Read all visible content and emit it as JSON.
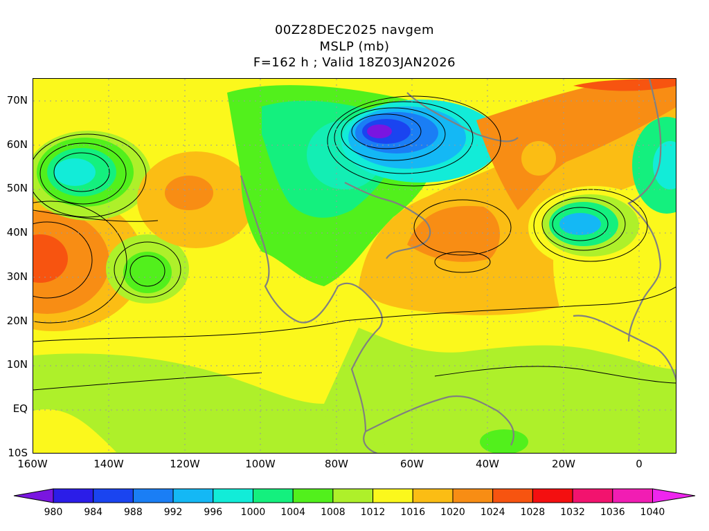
{
  "title": {
    "line1": "00Z28DEC2025 navgem",
    "line2": "MSLP (mb)",
    "line3": "F=162 h ; Valid 18Z03JAN2026"
  },
  "map": {
    "lat_labels": [
      "70N",
      "60N",
      "50N",
      "40N",
      "30N",
      "20N",
      "10N",
      "EQ",
      "10S"
    ],
    "lon_labels": [
      "160W",
      "140W",
      "120W",
      "100W",
      "80W",
      "60W",
      "40W",
      "20W",
      "0"
    ]
  },
  "colorbar": {
    "labels": [
      "980",
      "984",
      "988",
      "992",
      "996",
      "1000",
      "1004",
      "1008",
      "1012",
      "1016",
      "1020",
      "1024",
      "1028",
      "1032",
      "1036",
      "1040"
    ],
    "colors": [
      "#7a16e0",
      "#2b1de8",
      "#1a44f0",
      "#1a7ef5",
      "#14b8f5",
      "#12ecd8",
      "#14f07e",
      "#52f01c",
      "#aef02a",
      "#fbf81c",
      "#fbbd14",
      "#f88d14",
      "#f75410",
      "#f40f10",
      "#f2136e",
      "#f11db3",
      "#ee26ee"
    ]
  },
  "chart_data": {
    "type": "heatmap",
    "title": "MSLP (mb)",
    "units": "mb",
    "xlabel": "",
    "ylabel": "",
    "xlim": [
      "160W",
      "10E"
    ],
    "ylim": [
      "10S",
      "75N"
    ],
    "centers": [
      {
        "kind": "low",
        "lat": 62,
        "lon": -68,
        "value": 980
      },
      {
        "kind": "low",
        "lat": 42,
        "lon": -16,
        "value": 994
      },
      {
        "kind": "low",
        "lat": 54,
        "lon": -153,
        "value": 998
      },
      {
        "kind": "low",
        "lat": 56,
        "lon": 5,
        "value": 1000
      },
      {
        "kind": "low",
        "lat": 33,
        "lon": -130,
        "value": 1006
      },
      {
        "kind": "high",
        "lat": 35,
        "lon": -160,
        "value": 1026
      },
      {
        "kind": "high",
        "lat": 40,
        "lon": -55,
        "value": 1024
      },
      {
        "kind": "high",
        "lat": 58,
        "lon": -33,
        "value": 1024
      },
      {
        "kind": "high",
        "lat": 48,
        "lon": -123,
        "value": 1024
      }
    ]
  }
}
